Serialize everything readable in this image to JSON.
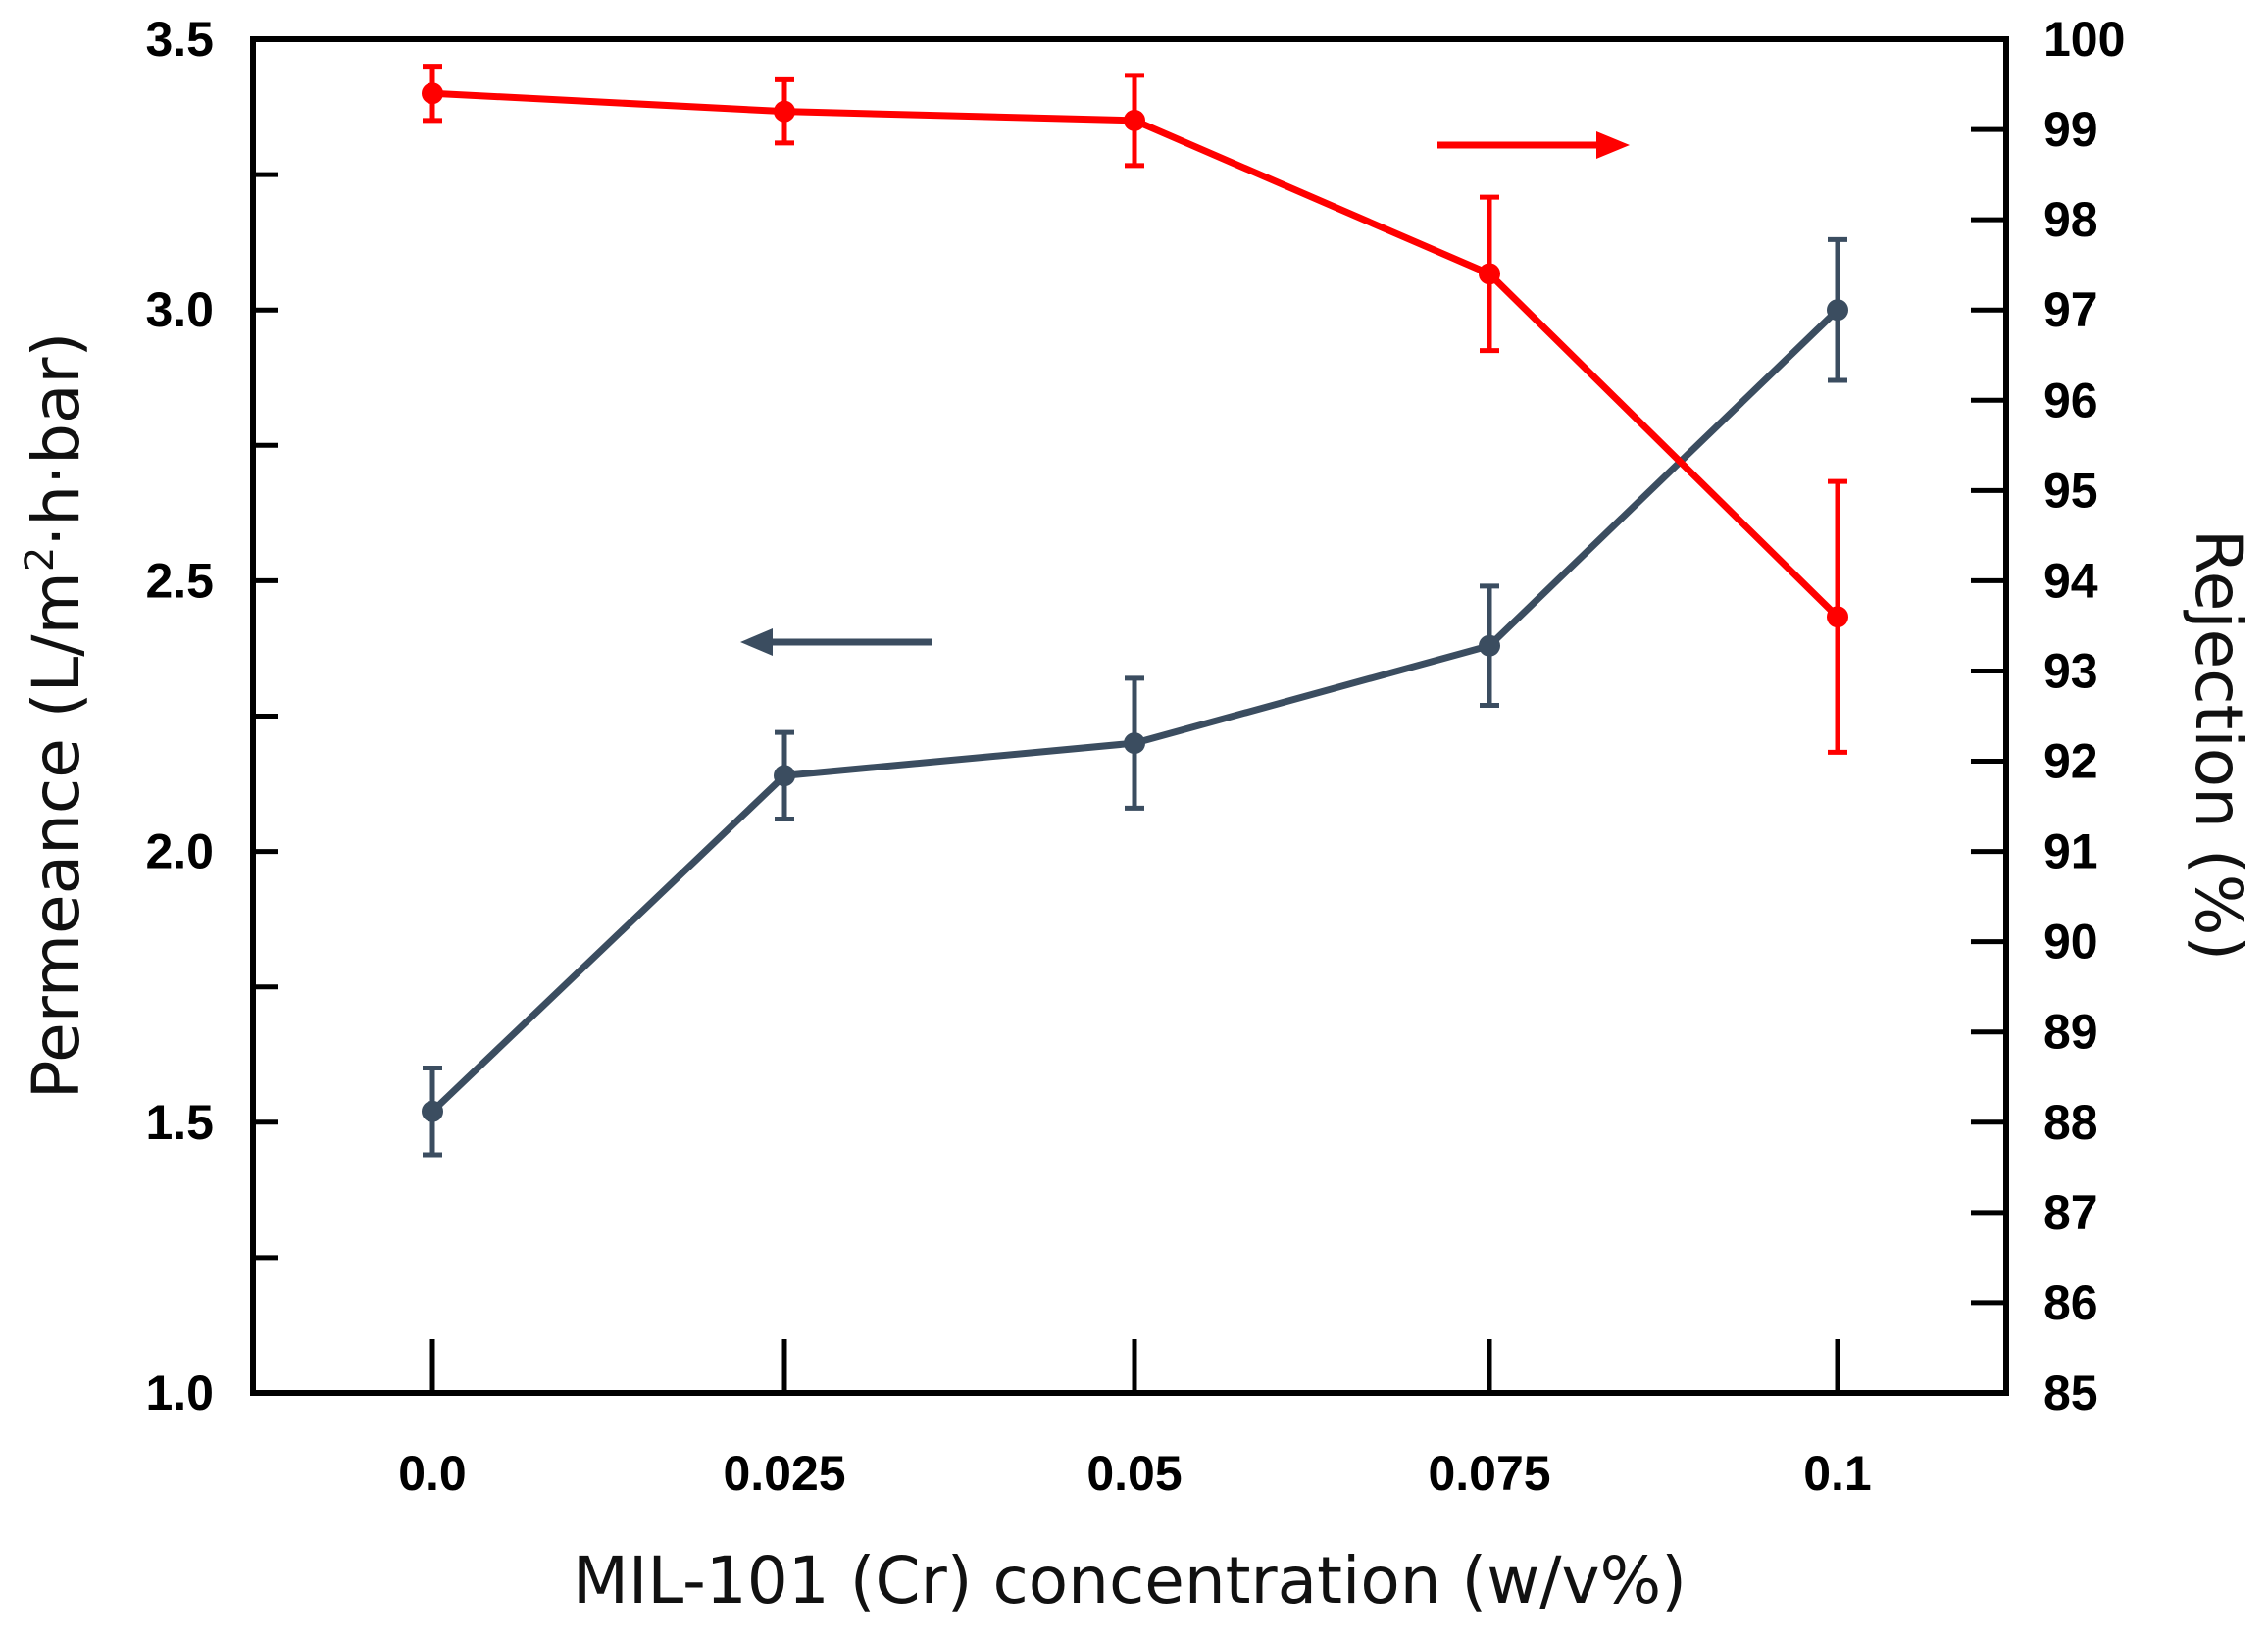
{
  "chart_data": {
    "type": "line",
    "title": "",
    "xlabel": "MIL-101 (Cr) concentration (w/v%)",
    "ylabel_left": {
      "main": "Permeance (L/m",
      "sup": "2",
      "tail": "·h·bar)"
    },
    "ylabel_right": "Rejection (%)",
    "categories": [
      "0.0",
      "0.025",
      "0.05",
      "0.075",
      "0.1"
    ],
    "ylim_left": [
      1.0,
      3.5
    ],
    "yticks_left": [
      "1.0",
      "1.5",
      "2.0",
      "2.5",
      "3.0",
      "3.5"
    ],
    "yticks_left_minor": [
      1.25,
      1.75,
      2.25,
      2.75,
      3.25
    ],
    "ylim_right": [
      85,
      100
    ],
    "yticks_right": [
      "85",
      "86",
      "87",
      "88",
      "89",
      "90",
      "91",
      "92",
      "93",
      "94",
      "95",
      "96",
      "97",
      "98",
      "99",
      "100"
    ],
    "series": [
      {
        "name": "Permeance",
        "axis": "left",
        "color": "#3b4d60",
        "values": [
          1.52,
          2.14,
          2.2,
          2.38,
          3.0
        ],
        "errors": [
          0.08,
          0.08,
          0.12,
          0.11,
          0.13
        ],
        "arrow": "left"
      },
      {
        "name": "Rejection",
        "axis": "right",
        "color": "#ff0000",
        "values": [
          99.4,
          99.2,
          99.1,
          97.4,
          93.6
        ],
        "errors": [
          0.3,
          0.35,
          0.5,
          0.85,
          1.5
        ],
        "arrow": "right"
      }
    ]
  }
}
